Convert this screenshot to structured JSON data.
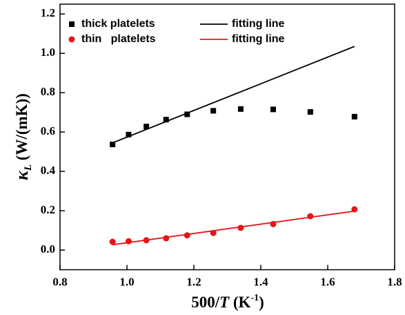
{
  "chart_data": {
    "type": "scatter",
    "x_label": [
      "500/",
      "T",
      " (K",
      "-1",
      ")"
    ],
    "y_label": [
      "κ",
      "L",
      " (W/(mK))"
    ],
    "xlim": [
      0.8,
      1.8
    ],
    "xticks": [
      0.8,
      {
        "value": 1,
        "label": "1.0"
      },
      1.2,
      1.4,
      1.6,
      1.8
    ],
    "ylim": [
      -0.1,
      1.25
    ],
    "yticks": [
      {
        "value": 0,
        "label": "0.0"
      },
      0.2,
      0.4,
      0.6,
      0.8,
      {
        "value": 1,
        "label": "1.0"
      },
      1.2
    ],
    "series": [
      {
        "name": "thick platelets",
        "mode": "marker",
        "marker": "square",
        "color": "#000000",
        "x": [
          0.957,
          1.005,
          1.058,
          1.117,
          1.18,
          1.258,
          1.34,
          1.437,
          1.548,
          1.68
        ],
        "values": [
          0.537,
          0.587,
          0.628,
          0.663,
          0.69,
          0.708,
          0.717,
          0.715,
          0.702,
          0.678
        ]
      },
      {
        "name": "fitting line",
        "mode": "line",
        "color": "#000000",
        "x": [
          0.957,
          1.68
        ],
        "values": [
          0.545,
          1.035
        ]
      },
      {
        "name": "thin   platelets",
        "mode": "marker",
        "marker": "circle",
        "color": "#e8141a",
        "x": [
          0.957,
          1.005,
          1.058,
          1.117,
          1.18,
          1.258,
          1.34,
          1.437,
          1.548,
          1.68
        ],
        "values": [
          0.042,
          0.045,
          0.05,
          0.06,
          0.075,
          0.087,
          0.113,
          0.132,
          0.172,
          0.207
        ]
      },
      {
        "name": "fitting line",
        "mode": "line",
        "color": "#e8141a",
        "x": [
          0.957,
          1.68
        ],
        "values": [
          0.027,
          0.198
        ]
      }
    ]
  }
}
